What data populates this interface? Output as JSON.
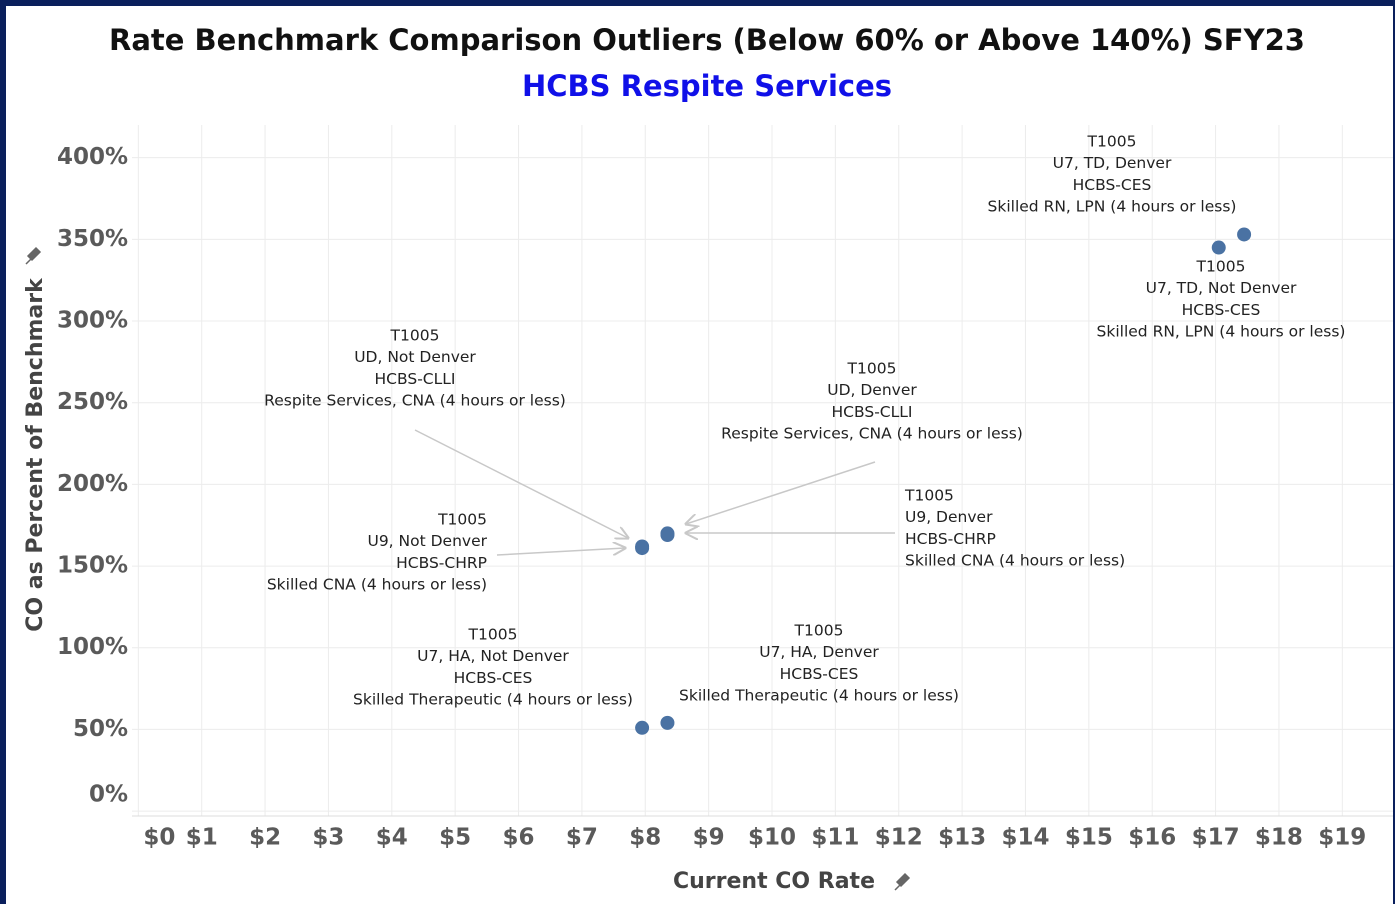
{
  "chart_data": {
    "type": "scatter",
    "title": "Rate Benchmark Comparison Outliers (Below 60% or Above 140%) SFY23",
    "subtitle": "HCBS Respite Services",
    "x_label": "Current CO Rate",
    "y_label": "CO as Percent of Benchmark",
    "color": "#4a72a3",
    "x": [
      7.95,
      8.35,
      7.95,
      8.35,
      7.95,
      8.35,
      17.45,
      17.05
    ],
    "values": [
      162,
      170,
      161,
      169,
      51,
      54,
      353,
      345
    ],
    "annotations": [
      [
        "T1005",
        "UD, Not Denver",
        "HCBS-CLLI",
        "Respite Services, CNA (4 hours or less)"
      ],
      [
        "T1005",
        "UD, Denver",
        "HCBS-CLLI",
        "Respite Services, CNA (4 hours or less)"
      ],
      [
        "T1005",
        "U9, Not Denver",
        "HCBS-CHRP",
        "Skilled CNA (4 hours or less)"
      ],
      [
        "T1005",
        " U9, Denver",
        "HCBS-CHRP",
        "Skilled CNA (4 hours or less)"
      ],
      [
        "T1005",
        "U7, HA, Not Denver",
        "HCBS-CES",
        "Skilled Therapeutic (4 hours or less)"
      ],
      [
        "T1005",
        "U7, HA, Denver",
        "HCBS-CES",
        "Skilled Therapeutic (4 hours or less)"
      ],
      [
        "T1005",
        "U7, TD, Denver",
        "HCBS-CES",
        "Skilled RN, LPN (4 hours or less)"
      ],
      [
        "T1005",
        "U7, TD, Not Denver",
        "HCBS-CES",
        "Skilled RN, LPN (4 hours or less)"
      ]
    ],
    "xlim": [
      -0.1,
      19.8
    ],
    "ylim": [
      -3,
      420
    ],
    "xticks": [
      {
        "value": 0,
        "label": "$0"
      },
      {
        "value": 1,
        "label": "$1"
      },
      {
        "value": 2,
        "label": "$2"
      },
      {
        "value": 3,
        "label": "$3"
      },
      {
        "value": 4,
        "label": "$4"
      },
      {
        "value": 5,
        "label": "$5"
      },
      {
        "value": 6,
        "label": "$6"
      },
      {
        "value": 7,
        "label": "$7"
      },
      {
        "value": 8,
        "label": "$8"
      },
      {
        "value": 9,
        "label": "$9"
      },
      {
        "value": 10,
        "label": "$10"
      },
      {
        "value": 11,
        "label": "$11"
      },
      {
        "value": 12,
        "label": "$12"
      },
      {
        "value": 13,
        "label": "$13"
      },
      {
        "value": 14,
        "label": "$14"
      },
      {
        "value": 15,
        "label": "$15"
      },
      {
        "value": 16,
        "label": "$16"
      },
      {
        "value": 17,
        "label": "$17"
      },
      {
        "value": 18,
        "label": "$18"
      },
      {
        "value": 19,
        "label": "$19"
      }
    ],
    "yticks": [
      {
        "value": 0,
        "label": "0%"
      },
      {
        "value": 50,
        "label": "50%"
      },
      {
        "value": 100,
        "label": "100%"
      },
      {
        "value": 150,
        "label": "150%"
      },
      {
        "value": 200,
        "label": "200%"
      },
      {
        "value": 250,
        "label": "250%"
      },
      {
        "value": 300,
        "label": "300%"
      },
      {
        "value": 350,
        "label": "350%"
      },
      {
        "value": 400,
        "label": "400%"
      }
    ],
    "grid": true
  }
}
